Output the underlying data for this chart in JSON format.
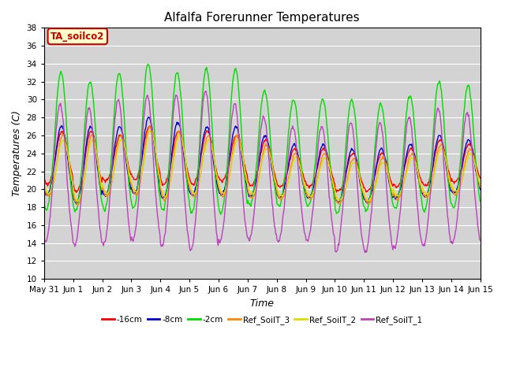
{
  "title": "Alfalfa Forerunner Temperatures",
  "ylabel": "Temperatures (C)",
  "xlabel": "Time",
  "annotation": "TA_soilco2",
  "ylim": [
    10,
    38
  ],
  "yticks": [
    10,
    12,
    14,
    16,
    18,
    20,
    22,
    24,
    26,
    28,
    30,
    32,
    34,
    36,
    38
  ],
  "bg_color": "#d3d3d3",
  "fig_color": "#ffffff",
  "colors": {
    "-16cm": "#ff0000",
    "-8cm": "#0000cc",
    "-2cm": "#00dd00",
    "Ref_SoilT_3": "#ff8800",
    "Ref_SoilT_2": "#dddd00",
    "Ref_SoilT_1": "#bb44bb"
  },
  "legend_labels": [
    "-16cm",
    "-8cm",
    "-2cm",
    "Ref_SoilT_3",
    "Ref_SoilT_2",
    "Ref_SoilT_1"
  ],
  "x_tick_labels": [
    "May 31",
    "Jun 1",
    "Jun 2",
    "Jun 3",
    "Jun 4",
    "Jun 5",
    "Jun 6",
    "Jun 7",
    "Jun 8",
    "Jun 9",
    "Jun 10",
    "Jun 11",
    "Jun 12",
    "Jun 13",
    "Jun 14",
    "Jun 15"
  ]
}
